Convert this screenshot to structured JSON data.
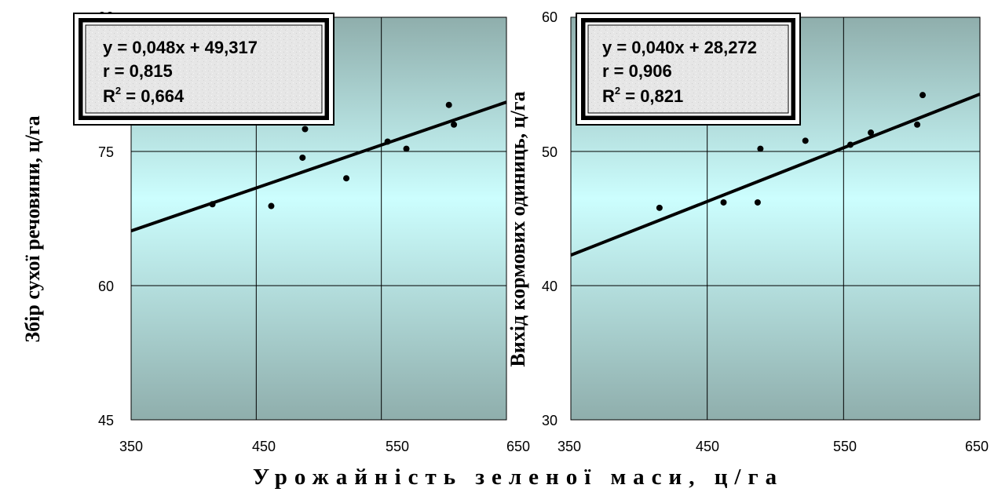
{
  "chart_data": [
    {
      "type": "scatter",
      "ylabel": "Збір сухої речовини, ц/га",
      "xlim": [
        350,
        650
      ],
      "ylim": [
        45,
        90
      ],
      "xticks": [
        "350",
        "450",
        "550",
        "650"
      ],
      "yticks": [
        "45",
        "60",
        "75",
        "90"
      ],
      "grid": true,
      "points": [
        {
          "x": 415,
          "y": 69.1
        },
        {
          "x": 462,
          "y": 68.9
        },
        {
          "x": 487,
          "y": 74.3
        },
        {
          "x": 489,
          "y": 77.5
        },
        {
          "x": 522,
          "y": 72.0
        },
        {
          "x": 555,
          "y": 76.1
        },
        {
          "x": 570,
          "y": 75.3
        },
        {
          "x": 604,
          "y": 80.2
        },
        {
          "x": 608,
          "y": 78.0
        }
      ],
      "trendline": {
        "slope": 0.048,
        "intercept": 49.317
      },
      "equation": {
        "line": "y = 0,048x + 49,317",
        "r": "r = 0,815",
        "r2_prefix": "R",
        "r2_sup": "2",
        "r2_value": " = 0,664"
      }
    },
    {
      "type": "scatter",
      "ylabel": "Вихід кормових одиниць, ц/га",
      "xlim": [
        350,
        650
      ],
      "ylim": [
        30,
        60
      ],
      "xticks": [
        "350",
        "450",
        "550",
        "650"
      ],
      "yticks": [
        "30",
        "40",
        "50",
        "60"
      ],
      "grid": true,
      "points": [
        {
          "x": 415,
          "y": 45.8
        },
        {
          "x": 462,
          "y": 46.2
        },
        {
          "x": 487,
          "y": 46.2
        },
        {
          "x": 489,
          "y": 50.2
        },
        {
          "x": 522,
          "y": 50.8
        },
        {
          "x": 555,
          "y": 50.5
        },
        {
          "x": 570,
          "y": 51.4
        },
        {
          "x": 604,
          "y": 52.0
        },
        {
          "x": 608,
          "y": 54.2
        }
      ],
      "trendline": {
        "slope": 0.04,
        "intercept": 28.272
      },
      "equation": {
        "line": "y = 0,040x + 28,272",
        "r": "r = 0,906",
        "r2_prefix": "R",
        "r2_sup": "2",
        "r2_value": " = 0,821"
      }
    }
  ],
  "xlabel": "Урожайність зеленої маси, ц/га",
  "colors": {
    "bg_dark": "#8faeac",
    "bg_light": "#ccfefe",
    "marker": "#000000",
    "trendline": "#000000",
    "grid": "#000000"
  }
}
